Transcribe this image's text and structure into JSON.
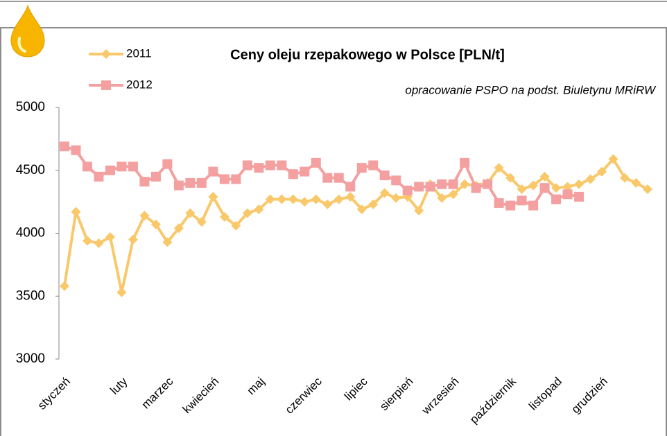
{
  "chart_data": {
    "type": "line",
    "title": "Ceny oleju rzepakowego w Polsce [PLN/t]",
    "subtitle": "opracowanie PSPO na podst. Biuletynu MRiRW",
    "categories": [
      "styczeń",
      null,
      null,
      null,
      null,
      "luty",
      null,
      null,
      null,
      "marzec",
      null,
      null,
      null,
      "kwiecień",
      null,
      null,
      null,
      "maj",
      null,
      null,
      null,
      null,
      "czerwiec",
      null,
      null,
      null,
      "lipiec",
      null,
      null,
      null,
      "sierpień",
      null,
      null,
      null,
      "wrzesień",
      null,
      null,
      null,
      null,
      "październik",
      null,
      null,
      null,
      "listopad",
      null,
      null,
      null,
      "grudzień",
      null,
      null,
      null,
      null
    ],
    "series": [
      {
        "name": "2011",
        "color": "#f9c86a",
        "marker": "diamond",
        "values": [
          3580,
          4170,
          3940,
          3920,
          3970,
          3530,
          3950,
          4140,
          4070,
          3930,
          4040,
          4160,
          4090,
          4290,
          4130,
          4060,
          4160,
          4190,
          4270,
          4270,
          4270,
          4250,
          4270,
          4230,
          4270,
          4290,
          4190,
          4230,
          4320,
          4280,
          4290,
          4180,
          4390,
          4280,
          4310,
          4390,
          4380,
          4400,
          4520,
          4440,
          4350,
          4380,
          4450,
          4360,
          4370,
          4390,
          4430,
          4490,
          4590,
          4440,
          4400,
          4350
        ]
      },
      {
        "name": "2012",
        "color": "#f4a0a0",
        "marker": "square",
        "values": [
          4690,
          4660,
          4530,
          4450,
          4500,
          4530,
          4530,
          4410,
          4450,
          4550,
          4380,
          4400,
          4400,
          4490,
          4430,
          4430,
          4540,
          4520,
          4540,
          4540,
          4470,
          4490,
          4560,
          4440,
          4440,
          4370,
          4520,
          4540,
          4460,
          4420,
          4340,
          4370,
          4370,
          4390,
          4390,
          4560,
          4360,
          4390,
          4240,
          4220,
          4260,
          4220,
          4360,
          4270,
          4310,
          4290,
          null,
          null,
          null,
          null,
          null,
          null
        ]
      }
    ],
    "ylim": [
      3000,
      5000
    ],
    "yticks": [
      3000,
      3500,
      4000,
      4500,
      5000
    ],
    "grid": false
  }
}
